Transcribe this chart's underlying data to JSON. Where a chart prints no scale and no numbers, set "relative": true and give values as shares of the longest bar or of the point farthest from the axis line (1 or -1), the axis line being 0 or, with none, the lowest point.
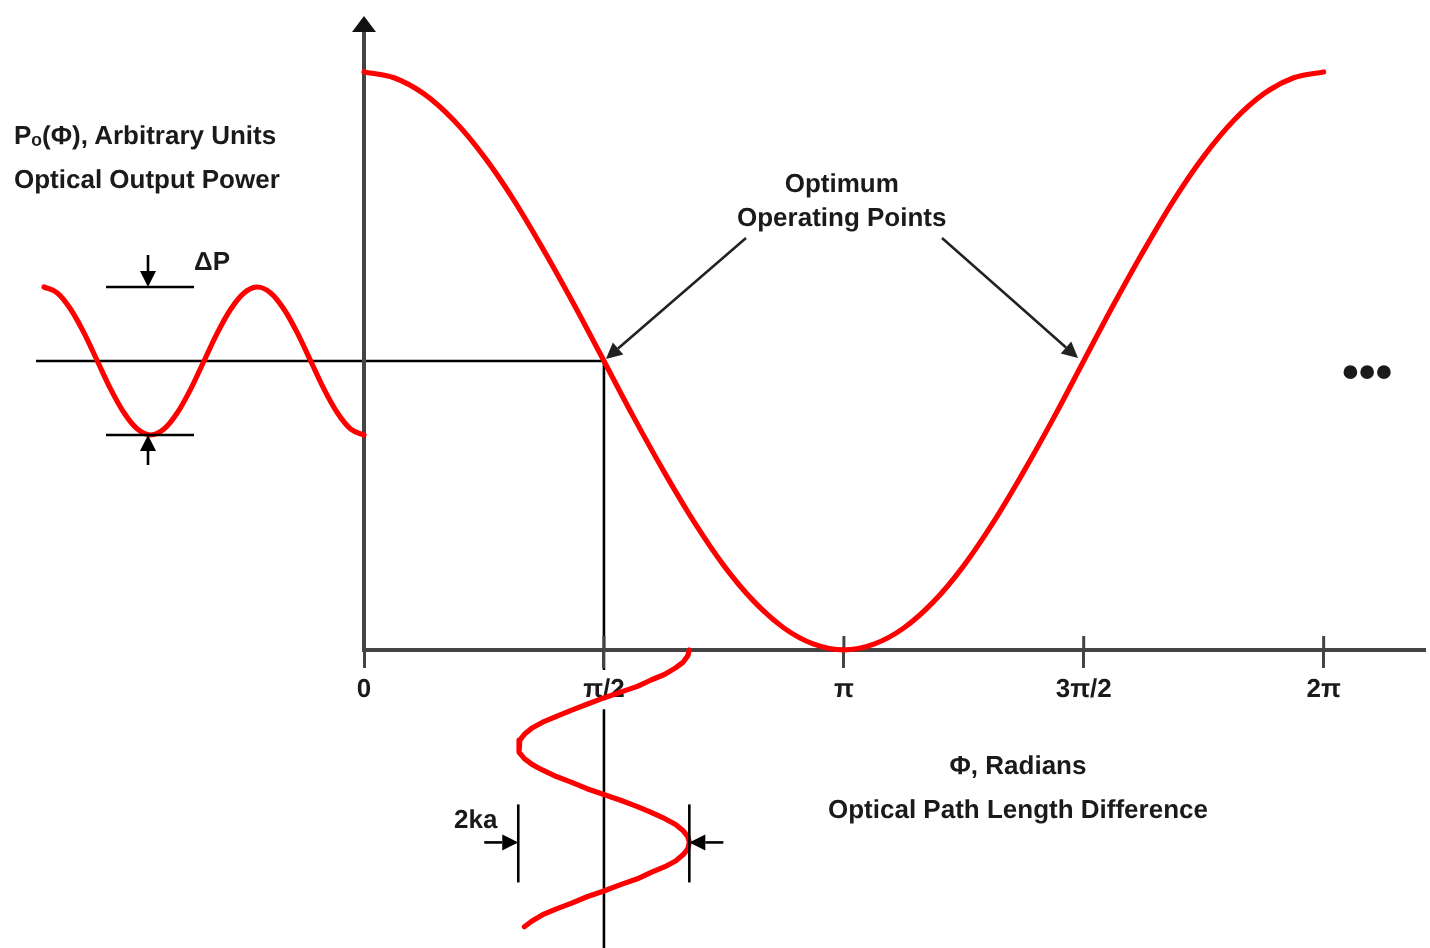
{
  "chart_data": [
    {
      "type": "line",
      "xlabel": "Φ, Radians\nOptical Path Length Difference",
      "ylabel": "Pₒ(Φ), Arbitrary Units\nOptical Output Power",
      "annotations": [
        "Optimum\nOperating Points",
        "•••",
        "2ka"
      ],
      "x": [
        0,
        0.196,
        0.393,
        0.589,
        0.785,
        0.982,
        1.178,
        1.374,
        1.571,
        1.767,
        1.963,
        2.16,
        2.356,
        2.553,
        2.749,
        2.945,
        3.142,
        3.338,
        3.534,
        3.731,
        3.927,
        4.123,
        4.32,
        4.516,
        4.712,
        4.909,
        5.105,
        5.301,
        5.498,
        5.694,
        5.89,
        6.087,
        6.283
      ],
      "series": [
        {
          "color": "#ff0000",
          "values": [
            1,
            0.99,
            0.962,
            0.916,
            0.854,
            0.778,
            0.691,
            0.598,
            0.5,
            0.402,
            0.309,
            0.222,
            0.146,
            0.084,
            0.038,
            0.01,
            0,
            0.01,
            0.038,
            0.084,
            0.146,
            0.222,
            0.309,
            0.402,
            0.5,
            0.598,
            0.691,
            0.778,
            0.854,
            0.916,
            0.962,
            0.99,
            1
          ]
        },
        {
          "color": "#ff0000",
          "x": [
            2.13,
            2.12,
            2.09,
            2.04,
            1.97,
            1.88,
            1.79,
            1.68,
            1.57,
            1.46,
            1.36,
            1.26,
            1.17,
            1.1,
            1.05,
            1.02,
            1.01,
            1.02,
            1.05,
            1.1,
            1.17,
            1.26,
            1.36,
            1.46,
            1.57,
            1.68,
            1.79,
            1.88,
            1.97,
            2.04,
            2.09,
            2.12,
            2.13,
            2.12,
            2.09,
            2.04,
            1.97,
            1.88,
            1.79,
            1.68,
            1.57,
            1.46,
            1.36,
            1.26,
            1.17,
            1.1,
            1.05
          ],
          "values": [
            0,
            -0.01,
            -0.021,
            -0.031,
            -0.042,
            -0.052,
            -0.063,
            -0.073,
            -0.083,
            -0.094,
            -0.104,
            -0.115,
            -0.125,
            -0.135,
            -0.146,
            -0.156,
            -0.167,
            -0.177,
            -0.188,
            -0.198,
            -0.208,
            -0.219,
            -0.229,
            -0.24,
            -0.25,
            -0.26,
            -0.271,
            -0.281,
            -0.292,
            -0.302,
            -0.313,
            -0.323,
            -0.333,
            -0.344,
            -0.354,
            -0.365,
            -0.375,
            -0.385,
            -0.396,
            -0.406,
            -0.417,
            -0.427,
            -0.438,
            -0.448,
            -0.458,
            -0.469,
            -0.479
          ]
        }
      ],
      "relative": true,
      "xlim": [
        0,
        6.94
      ],
      "xticks": [
        0,
        {
          "value": 1.571,
          "label": "π/2"
        },
        {
          "value": 3.142,
          "label": "π"
        },
        {
          "value": 4.712,
          "label": "3π/2"
        },
        {
          "value": 6.283,
          "label": "2π"
        }
      ],
      "ref_lines": [
        {
          "axis": "y",
          "value": 0.5,
          "color": "#000000"
        },
        {
          "axis": "x",
          "value": 1.571,
          "color": "#000000"
        }
      ],
      "marker": "none"
    },
    {
      "type": "line",
      "annotations": [
        "ΔP"
      ],
      "categories": [
        null,
        null,
        null,
        null,
        null,
        null,
        null,
        null,
        null,
        null,
        null,
        null,
        null,
        null,
        null,
        null,
        null,
        null,
        null,
        null,
        null,
        null,
        null,
        null,
        null
      ],
      "series": [
        {
          "color": "#ff0000",
          "values": [
            1,
            0.96,
            0.85,
            0.69,
            0.5,
            0.31,
            0.15,
            0.04,
            0,
            0.04,
            0.15,
            0.31,
            0.5,
            0.69,
            0.85,
            0.96,
            1,
            0.96,
            0.85,
            0.69,
            0.5,
            0.31,
            0.15,
            0.04,
            0
          ]
        }
      ],
      "relative": true,
      "tick_labels": false,
      "marker": "none"
    }
  ]
}
